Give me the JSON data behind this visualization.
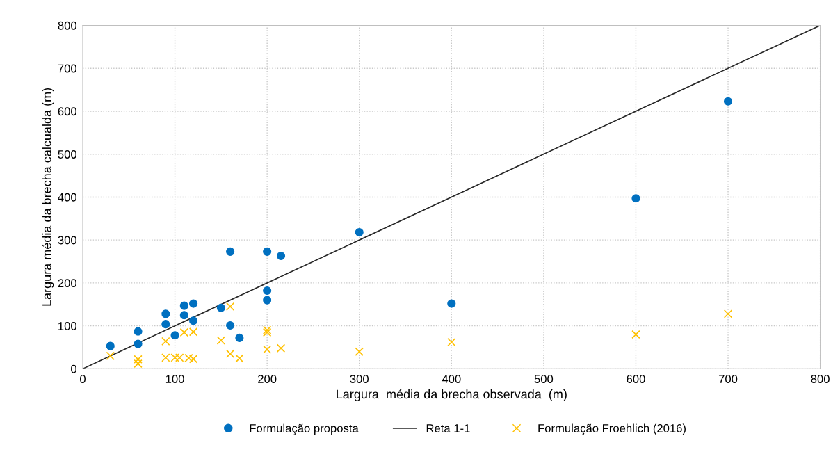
{
  "chart_data": {
    "type": "scatter",
    "xlabel": "Largura  média da brecha observada  (m)",
    "ylabel": "Largura média da brecha calcualda (m)",
    "xlim": [
      0,
      800
    ],
    "ylim": [
      0,
      800
    ],
    "xticks": [
      0,
      100,
      200,
      300,
      400,
      500,
      600,
      700,
      800
    ],
    "yticks": [
      0,
      100,
      200,
      300,
      400,
      500,
      600,
      700,
      800
    ],
    "grid": true,
    "legend": "bottom",
    "series": [
      {
        "name": "Formulação proposta",
        "marker": "circle",
        "color": "#0070c0",
        "x": [
          30,
          60,
          60,
          90,
          90,
          100,
          110,
          110,
          120,
          120,
          150,
          160,
          160,
          170,
          200,
          200,
          200,
          215,
          300,
          400,
          600,
          700
        ],
        "values": [
          53,
          87,
          58,
          128,
          104,
          78,
          147,
          125,
          152,
          112,
          142,
          273,
          101,
          72,
          273,
          182,
          160,
          263,
          318,
          152,
          397,
          623
        ]
      },
      {
        "name": "Reta 1-1",
        "type": "line",
        "marker": "none",
        "line_style": "solid",
        "color": "#262626",
        "x": [
          0,
          800
        ],
        "values": [
          0,
          800
        ]
      },
      {
        "name": "Formulação Froehlich (2016)",
        "marker": "cross",
        "color": "#ffc000",
        "x": [
          30,
          60,
          60,
          90,
          90,
          100,
          105,
          110,
          115,
          120,
          120,
          150,
          160,
          160,
          170,
          200,
          200,
          200,
          215,
          300,
          400,
          600,
          700
        ],
        "values": [
          30,
          22,
          12,
          64,
          26,
          26,
          26,
          85,
          25,
          86,
          23,
          66,
          145,
          35,
          24,
          90,
          85,
          45,
          48,
          40,
          62,
          80,
          128
        ]
      }
    ]
  }
}
